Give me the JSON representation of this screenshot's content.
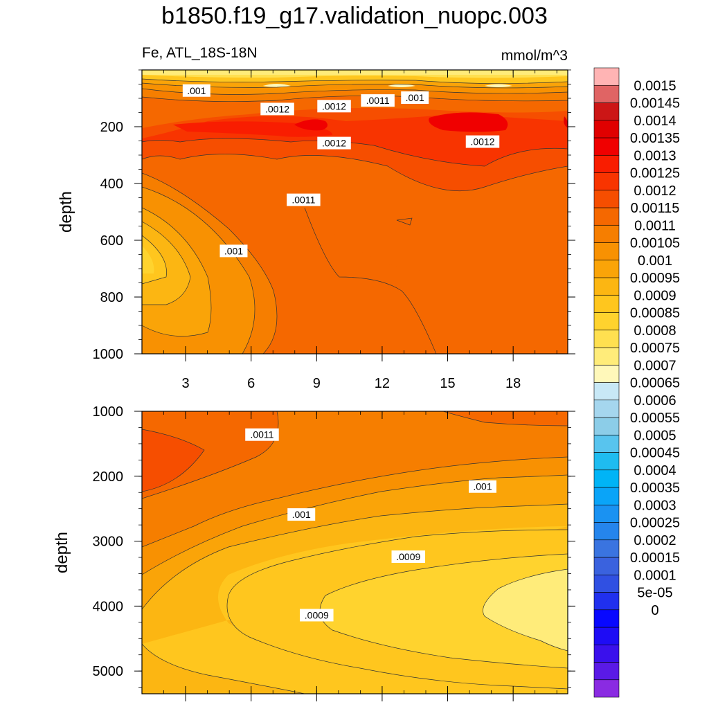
{
  "title": "b1850.f19_g17.validation_nuopc.003",
  "subtitle_left": "Fe, ATL_18S-18N",
  "subtitle_right": "mmol/m^3",
  "colors": {
    "levels": [
      "#8a2be2",
      "#5a1ae6",
      "#3a10ec",
      "#1e0cf5",
      "#0808ff",
      "#2030ee",
      "#3050e2",
      "#3a62de",
      "#3a74e0",
      "#2585ec",
      "#1a92f2",
      "#0aa4f8",
      "#00b4f6",
      "#1fbcf0",
      "#58c4ee",
      "#8ccde8",
      "#a5d6ee",
      "#c8e8f6",
      "#fff8ba",
      "#ffec7a",
      "#ffe050",
      "#ffd32e",
      "#ffc61e",
      "#fcb612",
      "#faa408",
      "#f89102",
      "#f67e00",
      "#f56800",
      "#f64e00",
      "#f83400",
      "#f91d00",
      "#f00000",
      "#e00000",
      "#cc1616",
      "#e06464",
      "#ffb4b4"
    ]
  },
  "chart_data": [
    {
      "type": "heatmap",
      "subtype": "filled-contour",
      "ylabel": "depth",
      "x_range": [
        1,
        20.5
      ],
      "y_range": [
        1000,
        0
      ],
      "x_ticks": [
        3,
        6,
        9,
        12,
        15,
        18
      ],
      "x_tick_labels": [
        "3",
        "6",
        "9",
        "12",
        "15",
        "18"
      ],
      "y_ticks": [
        200,
        400,
        600,
        800,
        1000
      ],
      "y_tick_labels": [
        "200",
        "400",
        "600",
        "800",
        "1000"
      ],
      "contour_labels": [
        {
          "text": ".001",
          "x": 3.5,
          "y": 75
        },
        {
          "text": ".0012",
          "x": 7.2,
          "y": 140
        },
        {
          "text": ".0012",
          "x": 9.8,
          "y": 130
        },
        {
          "text": ".0011",
          "x": 11.8,
          "y": 110
        },
        {
          "text": ".001",
          "x": 13.5,
          "y": 100
        },
        {
          "text": ".0012",
          "x": 9.8,
          "y": 260
        },
        {
          "text": ".0012",
          "x": 16.6,
          "y": 255
        },
        {
          "text": ".0011",
          "x": 8.4,
          "y": 460
        },
        {
          "text": ".001",
          "x": 5.2,
          "y": 640
        }
      ]
    },
    {
      "type": "heatmap",
      "subtype": "filled-contour",
      "ylabel": "depth",
      "x_range": [
        1,
        20.5
      ],
      "y_range": [
        5350,
        1000
      ],
      "x_ticks": [
        3,
        6,
        9,
        12,
        15,
        18
      ],
      "y_ticks": [
        1000,
        2000,
        3000,
        4000,
        5000
      ],
      "y_tick_labels": [
        "1000",
        "2000",
        "3000",
        "4000",
        "5000"
      ],
      "contour_labels": [
        {
          "text": ".0011",
          "x": 6.5,
          "y": 1370
        },
        {
          "text": ".001",
          "x": 16.6,
          "y": 2170
        },
        {
          "text": ".001",
          "x": 8.3,
          "y": 2600
        },
        {
          "text": ".0009",
          "x": 13.2,
          "y": 3250
        },
        {
          "text": ".0009",
          "x": 9.0,
          "y": 4150
        }
      ]
    }
  ],
  "colorbar": {
    "labels": [
      "0.0015",
      "0.00145",
      "0.0014",
      "0.00135",
      "0.0013",
      "0.00125",
      "0.0012",
      "0.00115",
      "0.0011",
      "0.00105",
      "0.001",
      "0.00095",
      "0.0009",
      "0.00085",
      "0.0008",
      "0.00075",
      "0.0007",
      "0.00065",
      "0.0006",
      "0.00055",
      "0.0005",
      "0.00045",
      "0.0004",
      "0.00035",
      "0.0003",
      "0.00025",
      "0.0002",
      "0.00015",
      "0.0001",
      "5e-05",
      "0"
    ]
  }
}
